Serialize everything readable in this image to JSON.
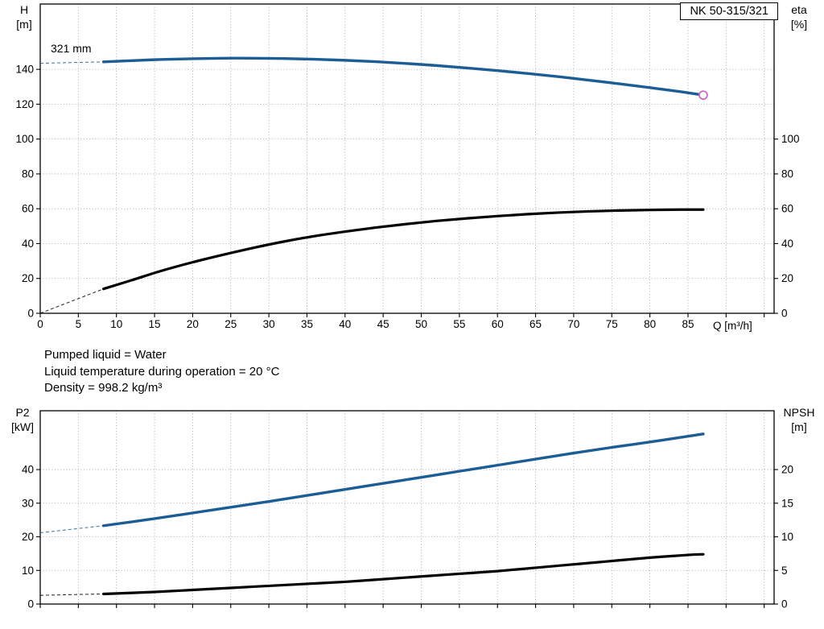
{
  "info_lines": [
    "Pumped liquid = Water",
    "Liquid temperature during operation = 20 °C",
    "Density = 998.2 kg/m³"
  ],
  "chart_data": [
    {
      "type": "line",
      "name": "head-efficiency-chart",
      "title": "NK 50-315/321",
      "x_axis": {
        "label": "Q [m³/h]",
        "range": [
          0,
          96.3
        ],
        "grid_step": 5,
        "ticks": [
          0,
          5,
          10,
          15,
          20,
          25,
          30,
          35,
          40,
          45,
          50,
          55,
          60,
          65,
          70,
          75,
          80,
          85
        ]
      },
      "left_axis": {
        "title": "H",
        "unit": "[m]",
        "range": [
          0,
          177.5
        ],
        "ticks": [
          0,
          20,
          40,
          60,
          80,
          100,
          120,
          140
        ]
      },
      "right_axis": {
        "title": "eta",
        "unit": "[%]",
        "to_left_factor": 1,
        "ticks": [
          0,
          20,
          40,
          60,
          80,
          100
        ]
      },
      "series": [
        {
          "name": "head-curve-321mm",
          "label": "321 mm",
          "axis": "left",
          "color": "#1d5d96",
          "width": 3.4,
          "lead_dash": [
            [
              0,
              143.5
            ],
            [
              8.3,
              144.3
            ]
          ],
          "points": [
            [
              8.3,
              144.3
            ],
            [
              12,
              145.0
            ],
            [
              16,
              145.7
            ],
            [
              20,
              146.1
            ],
            [
              24,
              146.4
            ],
            [
              28,
              146.4
            ],
            [
              32,
              146.2
            ],
            [
              36,
              145.8
            ],
            [
              40,
              145.2
            ],
            [
              44,
              144.4
            ],
            [
              48,
              143.4
            ],
            [
              52,
              142.2
            ],
            [
              56,
              140.8
            ],
            [
              60,
              139.3
            ],
            [
              64,
              137.6
            ],
            [
              68,
              135.8
            ],
            [
              72,
              133.8
            ],
            [
              76,
              131.7
            ],
            [
              80,
              129.5
            ],
            [
              84,
              127.2
            ],
            [
              87,
              125.2
            ]
          ],
          "end_marker": {
            "shape": "circle",
            "color": "#c95cc9"
          }
        },
        {
          "name": "efficiency-curve",
          "label": "",
          "axis": "right",
          "color": "#000000",
          "width": 3.2,
          "lead_dash": [
            [
              0,
              0
            ],
            [
              8.3,
              14
            ]
          ],
          "points": [
            [
              8.3,
              14
            ],
            [
              12,
              19
            ],
            [
              16,
              24.5
            ],
            [
              20,
              29.3
            ],
            [
              24,
              33.6
            ],
            [
              28,
              37.6
            ],
            [
              32,
              41.2
            ],
            [
              36,
              44.3
            ],
            [
              40,
              46.9
            ],
            [
              44,
              49.2
            ],
            [
              48,
              51.2
            ],
            [
              52,
              53.0
            ],
            [
              56,
              54.5
            ],
            [
              60,
              55.8
            ],
            [
              64,
              56.9
            ],
            [
              68,
              57.8
            ],
            [
              72,
              58.5
            ],
            [
              76,
              59.0
            ],
            [
              80,
              59.3
            ],
            [
              84,
              59.5
            ],
            [
              87,
              59.5
            ]
          ]
        }
      ]
    },
    {
      "type": "line",
      "name": "power-npsh-chart",
      "title": "",
      "x_axis": {
        "label": "",
        "range": [
          0,
          96.3
        ],
        "grid_step": 5,
        "ticks": []
      },
      "left_axis": {
        "title": "P2",
        "unit": "[kW]",
        "range": [
          0,
          57.5
        ],
        "ticks": [
          0,
          10,
          20,
          30,
          40
        ]
      },
      "right_axis": {
        "title": "NPSH",
        "unit": "[m]",
        "to_left_factor": 2,
        "ticks": [
          0,
          5,
          10,
          15,
          20
        ]
      },
      "series": [
        {
          "name": "power-curve",
          "label": "",
          "axis": "left",
          "color": "#1d5d96",
          "width": 3.4,
          "lead_dash": [
            [
              0,
              21.2
            ],
            [
              8.3,
              23.3
            ]
          ],
          "points": [
            [
              8.3,
              23.3
            ],
            [
              15,
              25.4
            ],
            [
              20,
              27.1
            ],
            [
              25,
              28.8
            ],
            [
              30,
              30.5
            ],
            [
              35,
              32.3
            ],
            [
              40,
              34.1
            ],
            [
              45,
              35.9
            ],
            [
              50,
              37.7
            ],
            [
              55,
              39.5
            ],
            [
              60,
              41.3
            ],
            [
              65,
              43.1
            ],
            [
              70,
              44.9
            ],
            [
              75,
              46.6
            ],
            [
              80,
              48.2
            ],
            [
              85,
              49.9
            ],
            [
              87,
              50.6
            ]
          ]
        },
        {
          "name": "npsh-curve",
          "label": "",
          "axis": "right",
          "color": "#000000",
          "width": 3.2,
          "lead_dash": [
            [
              0,
              1.3
            ],
            [
              8.3,
              1.5
            ]
          ],
          "points": [
            [
              8.3,
              1.5
            ],
            [
              15,
              1.8
            ],
            [
              20,
              2.1
            ],
            [
              25,
              2.4
            ],
            [
              30,
              2.7
            ],
            [
              35,
              3.0
            ],
            [
              40,
              3.3
            ],
            [
              45,
              3.7
            ],
            [
              50,
              4.1
            ],
            [
              55,
              4.5
            ],
            [
              60,
              4.9
            ],
            [
              65,
              5.4
            ],
            [
              70,
              5.9
            ],
            [
              75,
              6.4
            ],
            [
              80,
              6.9
            ],
            [
              85,
              7.3
            ],
            [
              87,
              7.4
            ]
          ]
        }
      ]
    }
  ]
}
